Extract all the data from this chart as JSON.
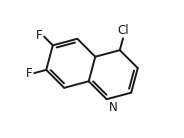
{
  "bg_color": "#ffffff",
  "line_color": "#1a1a1a",
  "line_width": 1.4,
  "font_size": 8.5,
  "cl_label": "Cl",
  "n_label": "N",
  "f1_label": "F",
  "f2_label": "F",
  "figsize": [
    1.84,
    1.38
  ],
  "dpi": 100,
  "rotation_deg": 15
}
